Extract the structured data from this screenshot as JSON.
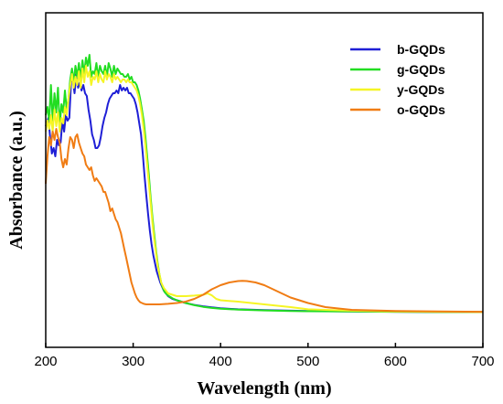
{
  "chart_data": {
    "type": "line",
    "xlabel": "Wavelength (nm)",
    "ylabel": "Absorbance (a.u.)",
    "xlim": [
      200,
      700
    ],
    "xticks": [
      200,
      300,
      400,
      500,
      600,
      700
    ],
    "ylim": [
      0,
      1
    ],
    "y_tick_labels_shown": false,
    "grid": false,
    "legend_position": "top-right",
    "series": [
      {
        "name": "b-GQDs",
        "color": "#1f1fd6",
        "x": [
          200,
          203,
          205,
          207,
          209,
          211,
          213,
          215,
          217,
          219,
          221,
          223,
          225,
          227,
          229,
          231,
          233,
          235,
          237,
          239,
          241,
          243,
          245,
          247,
          249,
          251,
          253,
          255,
          257,
          259,
          261,
          263,
          265,
          267,
          269,
          271,
          273,
          275,
          277,
          279,
          281,
          283,
          285,
          287,
          289,
          291,
          293,
          295,
          297,
          299,
          301,
          303,
          305,
          307,
          309,
          311,
          313,
          315,
          317,
          319,
          321,
          323,
          325,
          327,
          329,
          331,
          335,
          340,
          345,
          350,
          360,
          370,
          380,
          390,
          400,
          420,
          450,
          480,
          500,
          550,
          600,
          650,
          700
        ],
        "y": [
          0.68,
          0.71,
          0.64,
          0.58,
          0.6,
          0.57,
          0.63,
          0.61,
          0.62,
          0.7,
          0.66,
          0.72,
          0.7,
          0.71,
          0.84,
          0.85,
          0.8,
          0.87,
          0.82,
          0.84,
          0.81,
          0.83,
          0.8,
          0.79,
          0.74,
          0.7,
          0.65,
          0.63,
          0.6,
          0.6,
          0.61,
          0.64,
          0.68,
          0.71,
          0.73,
          0.76,
          0.78,
          0.79,
          0.8,
          0.8,
          0.81,
          0.8,
          0.83,
          0.81,
          0.82,
          0.81,
          0.82,
          0.8,
          0.8,
          0.79,
          0.78,
          0.76,
          0.73,
          0.69,
          0.65,
          0.58,
          0.5,
          0.43,
          0.36,
          0.3,
          0.25,
          0.21,
          0.18,
          0.15,
          0.13,
          0.11,
          0.08,
          0.06,
          0.05,
          0.045,
          0.035,
          0.028,
          0.023,
          0.019,
          0.016,
          0.012,
          0.009,
          0.007,
          0.006,
          0.004,
          0.003,
          0.002,
          0.002
        ]
      },
      {
        "name": "g-GQDs",
        "color": "#22dd22",
        "x": [
          200,
          202,
          204,
          206,
          208,
          210,
          212,
          214,
          216,
          218,
          220,
          222,
          224,
          226,
          228,
          230,
          232,
          234,
          236,
          238,
          240,
          242,
          244,
          246,
          248,
          250,
          252,
          254,
          256,
          258,
          260,
          262,
          264,
          266,
          268,
          270,
          272,
          274,
          276,
          278,
          280,
          282,
          284,
          286,
          288,
          290,
          292,
          294,
          296,
          298,
          300,
          302,
          304,
          306,
          308,
          310,
          312,
          314,
          316,
          318,
          320,
          322,
          324,
          326,
          328,
          330,
          332,
          334,
          336,
          340,
          345,
          350,
          360,
          370,
          380,
          390,
          400,
          420,
          450,
          480,
          500,
          550,
          600,
          650,
          700
        ],
        "y": [
          0.72,
          0.75,
          0.7,
          0.83,
          0.7,
          0.8,
          0.73,
          0.82,
          0.68,
          0.76,
          0.73,
          0.81,
          0.74,
          0.78,
          0.85,
          0.89,
          0.84,
          0.9,
          0.86,
          0.91,
          0.85,
          0.92,
          0.87,
          0.93,
          0.9,
          0.94,
          0.86,
          0.88,
          0.87,
          0.91,
          0.86,
          0.9,
          0.88,
          0.87,
          0.9,
          0.86,
          0.91,
          0.89,
          0.86,
          0.9,
          0.87,
          0.89,
          0.88,
          0.87,
          0.87,
          0.86,
          0.86,
          0.87,
          0.85,
          0.86,
          0.84,
          0.84,
          0.83,
          0.81,
          0.78,
          0.74,
          0.7,
          0.64,
          0.57,
          0.5,
          0.42,
          0.35,
          0.29,
          0.23,
          0.18,
          0.14,
          0.11,
          0.09,
          0.075,
          0.062,
          0.052,
          0.045,
          0.035,
          0.027,
          0.021,
          0.017,
          0.014,
          0.011,
          0.008,
          0.006,
          0.005,
          0.004,
          0.003,
          0.002,
          0.002
        ]
      },
      {
        "name": "y-GQDs",
        "color": "#f5f525",
        "x": [
          200,
          202,
          204,
          206,
          208,
          210,
          212,
          214,
          216,
          218,
          220,
          222,
          224,
          226,
          228,
          230,
          232,
          234,
          236,
          238,
          240,
          242,
          244,
          246,
          248,
          250,
          252,
          254,
          256,
          258,
          260,
          262,
          264,
          266,
          268,
          270,
          272,
          274,
          276,
          278,
          280,
          282,
          284,
          286,
          288,
          290,
          292,
          294,
          296,
          298,
          300,
          302,
          304,
          306,
          308,
          310,
          312,
          314,
          316,
          318,
          320,
          322,
          324,
          326,
          328,
          330,
          332,
          335,
          340,
          345,
          350,
          360,
          370,
          380,
          385,
          390,
          395,
          400,
          420,
          450,
          480,
          500,
          550,
          600,
          650,
          700
        ],
        "y": [
          0.66,
          0.7,
          0.67,
          0.72,
          0.66,
          0.74,
          0.68,
          0.73,
          0.66,
          0.71,
          0.69,
          0.75,
          0.72,
          0.78,
          0.83,
          0.87,
          0.82,
          0.86,
          0.83,
          0.88,
          0.82,
          0.89,
          0.84,
          0.9,
          0.86,
          0.88,
          0.83,
          0.86,
          0.85,
          0.88,
          0.84,
          0.87,
          0.85,
          0.84,
          0.88,
          0.85,
          0.87,
          0.86,
          0.84,
          0.87,
          0.85,
          0.86,
          0.85,
          0.84,
          0.85,
          0.85,
          0.84,
          0.85,
          0.84,
          0.84,
          0.83,
          0.82,
          0.81,
          0.79,
          0.76,
          0.72,
          0.67,
          0.61,
          0.54,
          0.47,
          0.4,
          0.33,
          0.27,
          0.22,
          0.17,
          0.14,
          0.11,
          0.09,
          0.07,
          0.065,
          0.06,
          0.06,
          0.062,
          0.065,
          0.07,
          0.063,
          0.05,
          0.045,
          0.04,
          0.03,
          0.02,
          0.012,
          0.007,
          0.004,
          0.003,
          0.002
        ]
      },
      {
        "name": "o-GQDs",
        "color": "#f07c14",
        "x": [
          200,
          202,
          204,
          206,
          208,
          210,
          212,
          214,
          216,
          218,
          220,
          222,
          224,
          226,
          228,
          230,
          232,
          234,
          236,
          238,
          240,
          242,
          244,
          246,
          248,
          250,
          252,
          254,
          256,
          258,
          260,
          262,
          264,
          266,
          268,
          270,
          272,
          274,
          276,
          278,
          280,
          282,
          284,
          286,
          288,
          290,
          292,
          294,
          296,
          298,
          300,
          302,
          304,
          306,
          308,
          310,
          312,
          315,
          320,
          330,
          340,
          350,
          360,
          370,
          380,
          390,
          400,
          410,
          420,
          425,
          430,
          440,
          450,
          460,
          470,
          480,
          500,
          520,
          550,
          600,
          650,
          700
        ],
        "y": [
          0.47,
          0.57,
          0.64,
          0.61,
          0.66,
          0.63,
          0.67,
          0.64,
          0.62,
          0.56,
          0.53,
          0.56,
          0.54,
          0.6,
          0.64,
          0.63,
          0.6,
          0.64,
          0.65,
          0.62,
          0.6,
          0.58,
          0.57,
          0.54,
          0.53,
          0.52,
          0.53,
          0.5,
          0.48,
          0.49,
          0.48,
          0.47,
          0.46,
          0.44,
          0.44,
          0.42,
          0.4,
          0.37,
          0.38,
          0.36,
          0.34,
          0.33,
          0.31,
          0.29,
          0.26,
          0.23,
          0.2,
          0.17,
          0.14,
          0.11,
          0.09,
          0.07,
          0.055,
          0.045,
          0.038,
          0.035,
          0.032,
          0.03,
          0.03,
          0.03,
          0.032,
          0.035,
          0.04,
          0.05,
          0.065,
          0.085,
          0.1,
          0.11,
          0.115,
          0.116,
          0.115,
          0.11,
          0.1,
          0.085,
          0.07,
          0.055,
          0.035,
          0.02,
          0.01,
          0.006,
          0.004,
          0.003
        ]
      }
    ]
  }
}
